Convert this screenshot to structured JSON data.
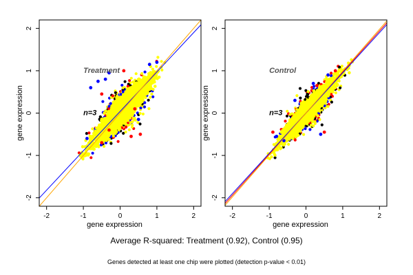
{
  "caption": {
    "main": "Average R-squared: Treatment (0.92), Control (0.95)",
    "note": "Genes detected at least one chip were plotted (detection p-value < 0.01)"
  },
  "colors": {
    "points_base": "#ffff00",
    "points_red": "#ff0000",
    "points_blue": "#0000ff",
    "points_black": "#000000",
    "fit_line": "#ffa500",
    "ref_line": "#0000ff",
    "ref_line_control": "#ff0000",
    "panel_title": "#555555"
  },
  "chart_data": [
    {
      "type": "scatter",
      "panel_title": "Treatment",
      "annotation": "n=3",
      "xlabel": "gene expression",
      "ylabel": "gene expression",
      "xlim": [
        -2.2,
        2.2
      ],
      "ylim": [
        -2.2,
        2.2
      ],
      "xticks": [
        -2,
        -1,
        0,
        1,
        2
      ],
      "yticks": [
        -2,
        -1,
        0,
        1,
        2
      ],
      "grid": false,
      "point_cloud": {
        "x_range": [
          -1.05,
          1.25
        ],
        "y_range": [
          -1.05,
          1.25
        ],
        "approx_r_squared": 0.92,
        "outliers": [
          {
            "x": -0.8,
            "y": 0.6,
            "color": "blue"
          },
          {
            "x": -0.6,
            "y": 0.75,
            "color": "blue"
          },
          {
            "x": -0.4,
            "y": 0.8,
            "color": "blue"
          },
          {
            "x": -0.5,
            "y": 0.45,
            "color": "red"
          },
          {
            "x": -0.3,
            "y": 0.95,
            "color": "blue"
          },
          {
            "x": 0.1,
            "y": 1.0,
            "color": "red"
          },
          {
            "x": 0.8,
            "y": 1.15,
            "color": "blue"
          },
          {
            "x": 1.0,
            "y": 1.2,
            "color": "blue"
          },
          {
            "x": -0.9,
            "y": -0.6,
            "color": "blue"
          },
          {
            "x": -0.5,
            "y": -0.7,
            "color": "red"
          },
          {
            "x": 0.3,
            "y": -0.55,
            "color": "red"
          },
          {
            "x": 0.55,
            "y": -0.5,
            "color": "red"
          },
          {
            "x": 0.5,
            "y": -0.15,
            "color": "blue"
          },
          {
            "x": 0.4,
            "y": 0.1,
            "color": "red"
          },
          {
            "x": -0.3,
            "y": -0.4,
            "color": "red"
          }
        ]
      },
      "lines": [
        {
          "name": "reference",
          "color": "blue",
          "slope": 0.93,
          "intercept": 0.04
        },
        {
          "name": "fit",
          "color": "orange",
          "slope": 1.0,
          "intercept": 0.0
        }
      ]
    },
    {
      "type": "scatter",
      "panel_title": "Control",
      "annotation": "n=3",
      "xlabel": "gene expression",
      "ylabel": "gene expression",
      "xlim": [
        -2.2,
        2.2
      ],
      "ylim": [
        -2.2,
        2.2
      ],
      "xticks": [
        -2,
        -1,
        0,
        1,
        2
      ],
      "yticks": [
        -2,
        -1,
        0,
        1,
        2
      ],
      "grid": false,
      "point_cloud": {
        "x_range": [
          -1.05,
          1.25
        ],
        "y_range": [
          -1.05,
          1.25
        ],
        "approx_r_squared": 0.95,
        "outliers": [
          {
            "x": -0.8,
            "y": -0.55,
            "color": "blue"
          },
          {
            "x": -0.9,
            "y": -0.45,
            "color": "red"
          },
          {
            "x": -0.6,
            "y": -0.65,
            "color": "blue"
          },
          {
            "x": -0.3,
            "y": 0.3,
            "color": "blue"
          },
          {
            "x": 0.3,
            "y": 0.65,
            "color": "red"
          },
          {
            "x": 0.2,
            "y": 0.7,
            "color": "blue"
          },
          {
            "x": 0.6,
            "y": 0.9,
            "color": "blue"
          },
          {
            "x": 0.5,
            "y": -0.45,
            "color": "red"
          },
          {
            "x": 0.4,
            "y": -0.5,
            "color": "blue"
          },
          {
            "x": 0.8,
            "y": 1.0,
            "color": "red"
          }
        ]
      },
      "lines": [
        {
          "name": "reference",
          "color": "red",
          "slope": 0.97,
          "intercept": 0.0
        },
        {
          "name": "fit",
          "color": "blue",
          "slope": 0.95,
          "intercept": 0.0
        },
        {
          "name": "fit",
          "color": "orange",
          "slope": 0.99,
          "intercept": 0.0
        }
      ]
    }
  ]
}
